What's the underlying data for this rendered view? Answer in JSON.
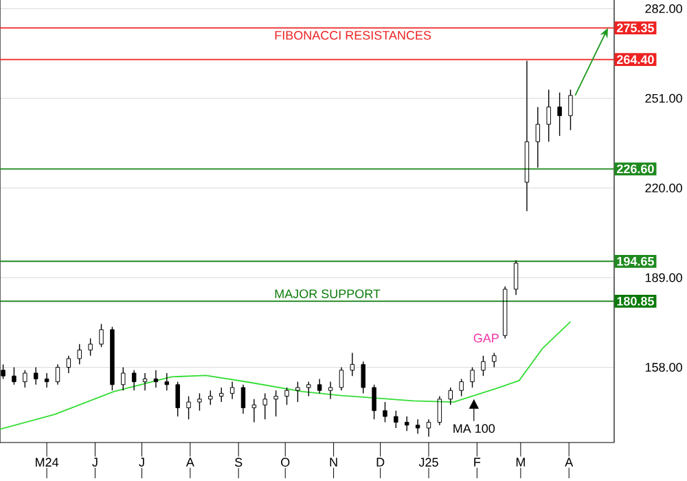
{
  "chart_data": {
    "type": "candlestick",
    "color": "#000000",
    "x": [
      "2024-04-03",
      "2024-04-10",
      "2024-04-17",
      "2024-04-24",
      "2024-05-01",
      "2024-05-08",
      "2024-05-15",
      "2024-05-22",
      "2024-05-29",
      "2024-06-05",
      "2024-06-12",
      "2024-06-19",
      "2024-06-26",
      "2024-07-03",
      "2024-07-10",
      "2024-07-17",
      "2024-07-24",
      "2024-07-31",
      "2024-08-07",
      "2024-08-14",
      "2024-08-21",
      "2024-08-28",
      "2024-09-04",
      "2024-09-11",
      "2024-09-18",
      "2024-09-25",
      "2024-10-02",
      "2024-10-09",
      "2024-10-16",
      "2024-10-23",
      "2024-10-30",
      "2024-11-06",
      "2024-11-13",
      "2024-11-20",
      "2024-11-27",
      "2024-12-04",
      "2024-12-11",
      "2024-12-18",
      "2024-12-25",
      "2025-01-01",
      "2025-01-08",
      "2025-01-15",
      "2025-01-22",
      "2025-01-29",
      "2025-02-05",
      "2025-02-12",
      "2025-02-19",
      "2025-02-26",
      "2025-03-05",
      "2025-03-12",
      "2025-03-19",
      "2025-03-26",
      "2025-04-02"
    ],
    "ohlc": [
      [
        157,
        159,
        154,
        155
      ],
      [
        155,
        158,
        152,
        153
      ],
      [
        153,
        157,
        151,
        156
      ],
      [
        156,
        158,
        152,
        154
      ],
      [
        154,
        156,
        151,
        153
      ],
      [
        153,
        159,
        152,
        158
      ],
      [
        158,
        162,
        156,
        161
      ],
      [
        161,
        166,
        159,
        164
      ],
      [
        164,
        168,
        162,
        166
      ],
      [
        166,
        173,
        165,
        171
      ],
      [
        171,
        172,
        150,
        152
      ],
      [
        152,
        158,
        150,
        156
      ],
      [
        156,
        157,
        150,
        153
      ],
      [
        153,
        156,
        150,
        154
      ],
      [
        154,
        157,
        151,
        153
      ],
      [
        153,
        156,
        150,
        152
      ],
      [
        152,
        153,
        141,
        144
      ],
      [
        144,
        148,
        140,
        146
      ],
      [
        146,
        149,
        143,
        147
      ],
      [
        147,
        150,
        145,
        148
      ],
      [
        148,
        151,
        146,
        149
      ],
      [
        149,
        153,
        147,
        151
      ],
      [
        151,
        152,
        142,
        144
      ],
      [
        144,
        147,
        139,
        145
      ],
      [
        145,
        149,
        140,
        147
      ],
      [
        147,
        150,
        141,
        148
      ],
      [
        148,
        151,
        145,
        150
      ],
      [
        150,
        153,
        146,
        151
      ],
      [
        151,
        153,
        148,
        152
      ],
      [
        152,
        154,
        149,
        150
      ],
      [
        150,
        153,
        147,
        151
      ],
      [
        151,
        158,
        150,
        157
      ],
      [
        157,
        163,
        155,
        159
      ],
      [
        159,
        160,
        149,
        151
      ],
      [
        151,
        152,
        140,
        143
      ],
      [
        143,
        146,
        139,
        141
      ],
      [
        141,
        143,
        137,
        139
      ],
      [
        139,
        141,
        136,
        138
      ],
      [
        138,
        140,
        135,
        137
      ],
      [
        137,
        140,
        134,
        139
      ],
      [
        139,
        148,
        138,
        147
      ],
      [
        147,
        151,
        145,
        150
      ],
      [
        150,
        154,
        148,
        153
      ],
      [
        153,
        158,
        151,
        157
      ],
      [
        157,
        162,
        155,
        160
      ],
      [
        160,
        163,
        158,
        162
      ],
      [
        169,
        186,
        168,
        185
      ],
      [
        185,
        195,
        183,
        194
      ],
      [
        222,
        264,
        212,
        236
      ],
      [
        236,
        248,
        227,
        242
      ],
      [
        242,
        254,
        236,
        248
      ],
      [
        248,
        253,
        238,
        245
      ],
      [
        245,
        254,
        240,
        252
      ]
    ],
    "series": [
      {
        "type": "line",
        "color": "#33dd33",
        "x": [
          "2024-04-01",
          "2024-05-06",
          "2024-06-13",
          "2024-07-20",
          "2024-08-11",
          "2024-09-07",
          "2024-10-12",
          "2024-11-07",
          "2024-12-22",
          "2025-01-17",
          "2025-02-13",
          "2025-02-28",
          "2025-03-15",
          "2025-04-02"
        ],
        "values": [
          136.6,
          141.7,
          149.6,
          154.7,
          155.2,
          152.9,
          149.6,
          148.2,
          146.4,
          146,
          150.6,
          153.4,
          164.5,
          173.8
        ]
      }
    ],
    "xlim": [
      "2024-04-01",
      "2025-04-30"
    ],
    "xticks": [
      {
        "value": "2024-05-01",
        "label": "M24"
      },
      {
        "value": "2024-06-01",
        "label": "J"
      },
      {
        "value": "2024-07-01",
        "label": "J"
      },
      {
        "value": "2024-08-01",
        "label": "A"
      },
      {
        "value": "2024-09-01",
        "label": "S"
      },
      {
        "value": "2024-10-01",
        "label": "O"
      },
      {
        "value": "2024-11-01",
        "label": "N"
      },
      {
        "value": "2024-12-01",
        "label": "D"
      },
      {
        "value": "2025-01-01",
        "label": "J25"
      },
      {
        "value": "2025-02-01",
        "label": "F"
      },
      {
        "value": "2025-03-01",
        "label": "M"
      },
      {
        "value": "2025-04-01",
        "label": "A"
      }
    ],
    "ylim": [
      132,
      285
    ],
    "yticks": [
      {
        "value": 158,
        "label": "158.00"
      },
      {
        "value": 189,
        "label": "189.00"
      },
      {
        "value": 220,
        "label": "220.00"
      },
      {
        "value": 251,
        "label": "251.00"
      },
      {
        "value": 282,
        "label": "282.00"
      }
    ],
    "grid": "y",
    "ref_lines": [
      {
        "axis": "y",
        "value": 275.35,
        "label": "275.35",
        "color": "#ee2222"
      },
      {
        "axis": "y",
        "value": 264.4,
        "label": "264.40",
        "color": "#ee2222"
      },
      {
        "axis": "y",
        "value": 226.6,
        "label": "226.60",
        "color": "#1f8a1f"
      },
      {
        "axis": "y",
        "value": 194.65,
        "label": "194.65",
        "color": "#1f8a1f"
      },
      {
        "axis": "y",
        "value": 180.85,
        "label": "180.85",
        "color": "#0a7a0a"
      }
    ],
    "annotations": [
      {
        "text": "FIBONACCI RESISTANCES",
        "x": "2024-09-22",
        "y": 275.35
      },
      {
        "text": "MAJOR SUPPORT",
        "x": "2024-09-22",
        "y": 180.85
      },
      "GAP",
      {
        "text": "MA 100",
        "x": "2025-01-30",
        "y": 147
      }
    ]
  }
}
